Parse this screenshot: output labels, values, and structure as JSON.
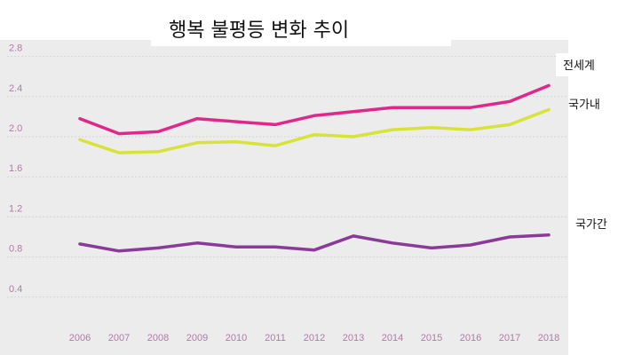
{
  "chart_data": {
    "type": "line",
    "title": "행복 불평등 변화 추이",
    "xlabel": "",
    "ylabel": "",
    "x": [
      2006,
      2007,
      2008,
      2009,
      2010,
      2011,
      2012,
      2013,
      2014,
      2015,
      2016,
      2017,
      2018
    ],
    "x_tick_labels": [
      "2006",
      "2007",
      "2008",
      "2009",
      "2010",
      "2011",
      "2012",
      "2013",
      "2014",
      "2015",
      "2016",
      "2017",
      "2018"
    ],
    "ylim": [
      0.0,
      2.8
    ],
    "y_ticks": [
      0.4,
      0.8,
      1.2,
      1.6,
      2.0,
      2.4,
      2.8
    ],
    "y_tick_labels": [
      "0.4",
      "0.8",
      "1.2",
      "1.6",
      "2.0",
      "2.4",
      "2.8"
    ],
    "grid": "horizontal",
    "series": [
      {
        "name": "전세계",
        "color": "#e0288a",
        "values": [
          2.18,
          2.03,
          2.05,
          2.18,
          2.15,
          2.12,
          2.21,
          2.25,
          2.29,
          2.29,
          2.29,
          2.35,
          2.51
        ]
      },
      {
        "name": "국가내",
        "color": "#d8e33a",
        "values": [
          1.97,
          1.84,
          1.85,
          1.94,
          1.95,
          1.91,
          2.02,
          2.0,
          2.07,
          2.09,
          2.07,
          2.12,
          2.27
        ]
      },
      {
        "name": "국가간",
        "color": "#8a3a98",
        "values": [
          0.93,
          0.86,
          0.89,
          0.94,
          0.9,
          0.9,
          0.87,
          1.01,
          0.94,
          0.89,
          0.92,
          1.0,
          1.02
        ]
      }
    ]
  }
}
